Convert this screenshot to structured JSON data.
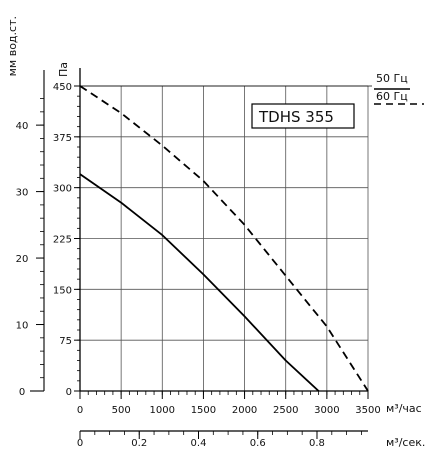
{
  "chart_data": {
    "type": "line",
    "title": "",
    "model_box": "TDHS 355",
    "y_pa": {
      "label": "Па",
      "ticks": [
        0,
        75,
        150,
        225,
        300,
        375,
        450
      ],
      "range": [
        0,
        450
      ]
    },
    "y_mm": {
      "label": "мм вод.ст.",
      "ticks": [
        0,
        10,
        20,
        30,
        40
      ]
    },
    "x_m3h": {
      "label": "м³/час",
      "ticks": [
        0,
        500,
        1000,
        1500,
        2000,
        2500,
        3000,
        3500
      ],
      "range": [
        0,
        3500
      ]
    },
    "x_m3s": {
      "label": "м³/сек.",
      "ticks": [
        "0",
        "0.2",
        "0.4",
        "0.6",
        "0.8"
      ],
      "tick_values": [
        0,
        0.2,
        0.4,
        0.6,
        0.8
      ]
    },
    "grid": true,
    "series": [
      {
        "name": "50 Гц",
        "style": "solid",
        "color": "#000000",
        "x": [
          0,
          500,
          1000,
          1500,
          2000,
          2500,
          2900
        ],
        "y": [
          320,
          278,
          230,
          172,
          110,
          45,
          0
        ]
      },
      {
        "name": "60 Гц",
        "style": "dashed",
        "color": "#000000",
        "x": [
          0,
          500,
          1000,
          1500,
          2000,
          2500,
          3000,
          3500
        ],
        "y": [
          450,
          410,
          362,
          310,
          245,
          170,
          95,
          0
        ]
      }
    ]
  }
}
